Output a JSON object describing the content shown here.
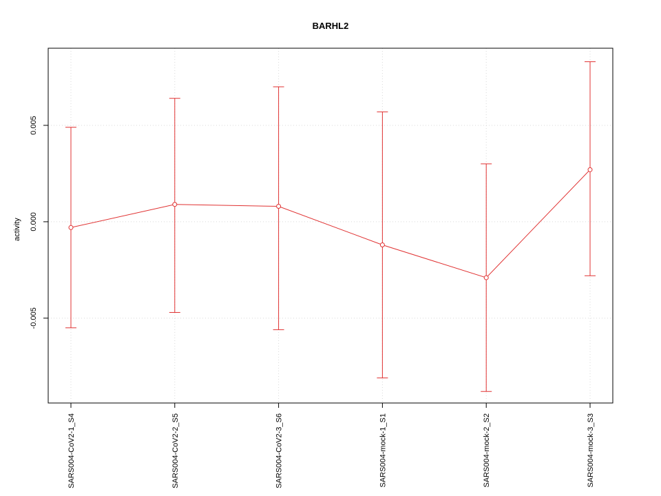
{
  "chart_data": {
    "type": "line",
    "title": "BARHL2",
    "ylabel": "activity",
    "xlabel": "",
    "categories": [
      "SARS004-CoV2-1_S4",
      "SARS004-CoV2-2_S5",
      "SARS004-CoV2-3_S6",
      "SARS004-mock-1_S1",
      "SARS004-mock-2_S2",
      "SARS004-mock-3_S3"
    ],
    "series": [
      {
        "name": "activity",
        "values": [
          -0.0003,
          0.0009,
          0.0008,
          -0.0012,
          -0.0029,
          0.0027
        ],
        "error_upper": [
          0.0049,
          0.0064,
          0.007,
          0.0057,
          0.003,
          0.0083
        ],
        "error_lower": [
          -0.0055,
          -0.0047,
          -0.0056,
          -0.0081,
          -0.0088,
          -0.0028
        ]
      }
    ],
    "yticks": [
      -0.005,
      0,
      0.005
    ],
    "ytick_labels": [
      "-0.005",
      "0.000",
      "0.005"
    ],
    "ylim": [
      -0.0094,
      0.009
    ],
    "grid": true,
    "legend_position": "none",
    "marker": "open-circle",
    "line_color": "#e03030",
    "grid_color": "#d8d8d8",
    "axis_color": "#000000",
    "text_color": "#000000"
  }
}
